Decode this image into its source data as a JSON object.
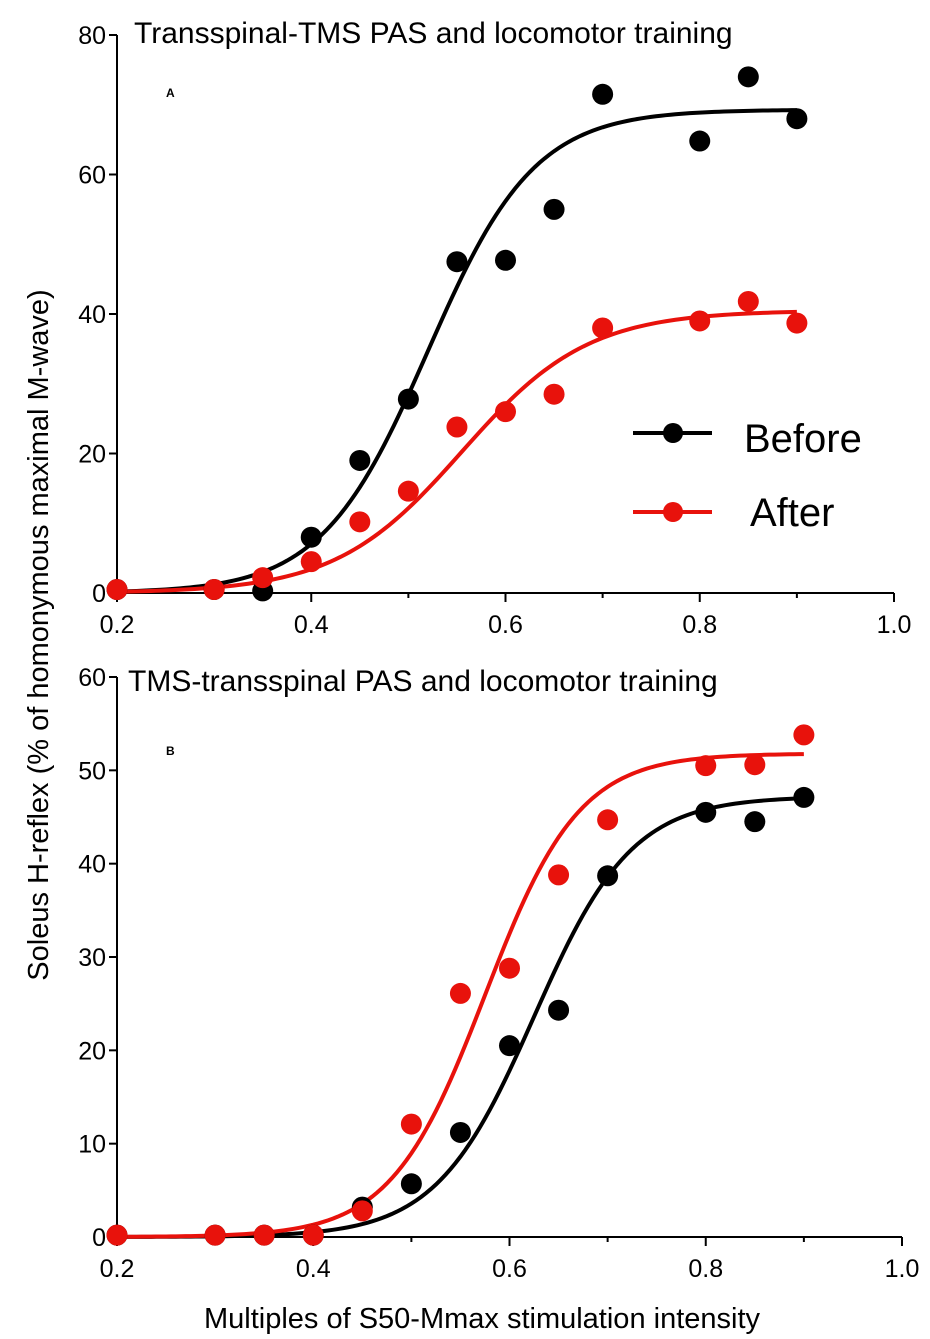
{
  "figure": {
    "ylabel": "Soleus H-reflex (% of homonymous maximal M-wave)",
    "xlabel": "Multiples of S50-Mmax stimulation intensity"
  },
  "legend": {
    "before_label": "Before",
    "after_label": "After",
    "before_color": "#000000",
    "after_color": "#e8120c"
  },
  "chart_data": [
    {
      "type": "scatter",
      "panel": "A",
      "title": "Transspinal-TMS PAS and locomotor training",
      "xlim": [
        0.2,
        1.0
      ],
      "ylim": [
        0,
        80
      ],
      "xticks": [
        "0.2",
        "0.4",
        "0.6",
        "0.8",
        "1.0"
      ],
      "yticks": [
        "0",
        "20",
        "40",
        "60",
        "80"
      ],
      "series": [
        {
          "name": "Before",
          "color": "#000000",
          "x": [
            0.2,
            0.3,
            0.35,
            0.4,
            0.45,
            0.5,
            0.55,
            0.6,
            0.65,
            0.7,
            0.8,
            0.85,
            0.9
          ],
          "y": [
            0.5,
            0.5,
            0.3,
            8,
            19,
            27.8,
            47.5,
            47.7,
            55,
            71.5,
            64.8,
            74,
            68
          ],
          "fit": {
            "top": 69.3,
            "x50": 0.52,
            "slope": 0.055
          }
        },
        {
          "name": "After",
          "color": "#e8120c",
          "x": [
            0.2,
            0.3,
            0.35,
            0.4,
            0.45,
            0.5,
            0.55,
            0.6,
            0.65,
            0.7,
            0.8,
            0.85,
            0.9
          ],
          "y": [
            0.5,
            0.5,
            2.2,
            4.5,
            10.2,
            14.6,
            23.8,
            26,
            28.5,
            38,
            39,
            41.8,
            38.7
          ],
          "fit": {
            "top": 40.5,
            "x50": 0.555,
            "slope": 0.065
          }
        }
      ]
    },
    {
      "type": "scatter",
      "panel": "B",
      "title": "TMS-transspinal PAS  and locomotor training",
      "xlim": [
        0.2,
        1.0
      ],
      "ylim": [
        0,
        60
      ],
      "xticks": [
        "0.2",
        "0.4",
        "0.6",
        "0.8",
        "1.0"
      ],
      "yticks": [
        "0",
        "10",
        "20",
        "30",
        "40",
        "50",
        "60"
      ],
      "series": [
        {
          "name": "Before",
          "color": "#000000",
          "x": [
            0.2,
            0.3,
            0.35,
            0.4,
            0.45,
            0.5,
            0.55,
            0.6,
            0.65,
            0.7,
            0.8,
            0.85,
            0.9
          ],
          "y": [
            0.2,
            0.2,
            0.2,
            0.2,
            3.2,
            5.7,
            11.2,
            20.5,
            24.3,
            38.7,
            45.5,
            44.5,
            47.1
          ],
          "fit": {
            "top": 47.2,
            "x50": 0.625,
            "slope": 0.05
          }
        },
        {
          "name": "After",
          "color": "#e8120c",
          "x": [
            0.2,
            0.3,
            0.35,
            0.4,
            0.45,
            0.5,
            0.55,
            0.6,
            0.65,
            0.7,
            0.8,
            0.85,
            0.9
          ],
          "y": [
            0.2,
            0.2,
            0.2,
            0.2,
            2.8,
            12.1,
            26.1,
            28.8,
            38.8,
            44.7,
            50.5,
            50.6,
            53.8
          ],
          "fit": {
            "top": 51.8,
            "x50": 0.575,
            "slope": 0.048
          }
        }
      ]
    }
  ]
}
